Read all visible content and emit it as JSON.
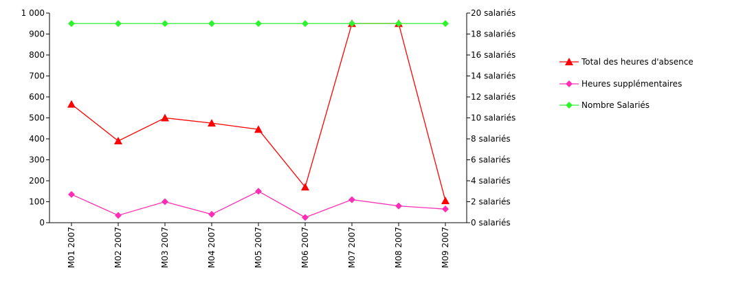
{
  "chart_data": {
    "type": "line",
    "title": "",
    "xlabel": "",
    "ylabel": "",
    "categories": [
      "M01 2007",
      "M02 2007",
      "M03 2007",
      "M04 2007",
      "M05 2007",
      "M06 2007",
      "M07 2007",
      "M08 2007",
      "M09 2007"
    ],
    "ylim": [
      0,
      1000
    ],
    "yticks": [
      "0",
      "100",
      "200",
      "300",
      "400",
      "500",
      "600",
      "700",
      "800",
      "900",
      "1 000"
    ],
    "y2lim": [
      0,
      20
    ],
    "y2ticks": [
      "0 salariés",
      "2 salariés",
      "4 salariés",
      "6 salariés",
      "8 salariés",
      "10 salariés",
      "12 salariés",
      "14 salariés",
      "16 salariés",
      "18 salariés",
      "20 salariés"
    ],
    "grid": false,
    "legend": "right",
    "series": [
      {
        "name": "Total des heures d'absence",
        "axis": "left",
        "marker": "triangle",
        "color": "#ff0000",
        "values": [
          565,
          390,
          500,
          475,
          445,
          170,
          950,
          950,
          105
        ]
      },
      {
        "name": "Heures  supplémentaires",
        "axis": "left",
        "marker": "diamond",
        "color": "#ff2db3",
        "values": [
          135,
          35,
          100,
          40,
          150,
          25,
          110,
          80,
          65
        ]
      },
      {
        "name": "Nombre  Salariés",
        "axis": "right",
        "marker": "diamond",
        "color": "#2ef22e",
        "values": [
          19,
          19,
          19,
          19,
          19,
          19,
          19,
          19,
          19
        ]
      }
    ]
  }
}
